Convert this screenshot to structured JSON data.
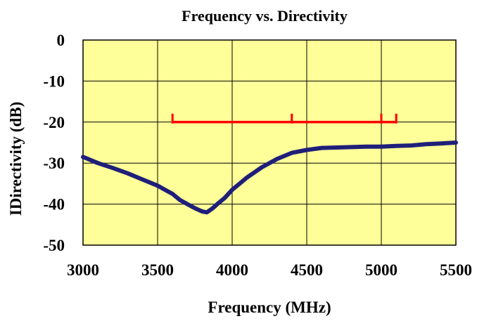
{
  "chart_data": {
    "type": "line",
    "title": "Frequency vs. Directivity",
    "xlabel": "Frequency (MHz)",
    "ylabel": "IDirectivity (dB)",
    "xlim": [
      3000,
      5500
    ],
    "ylim": [
      -50,
      0
    ],
    "xticks": [
      "3000",
      "3500",
      "4000",
      "4500",
      "5000",
      "5500"
    ],
    "yticks": [
      "0",
      "-10",
      "-20",
      "-30",
      "-40",
      "-50"
    ],
    "grid": true,
    "plot_background": "#FFFF99",
    "series": [
      {
        "color": "#1F1F7A",
        "x": [
          3000,
          3100,
          3200,
          3300,
          3400,
          3500,
          3550,
          3600,
          3650,
          3700,
          3750,
          3800,
          3830,
          3850,
          3870,
          3900,
          3950,
          4000,
          4050,
          4100,
          4200,
          4300,
          4400,
          4500,
          4600,
          4700,
          4800,
          4900,
          5000,
          5100,
          5200,
          5300,
          5400,
          5500
        ],
        "y": [
          -28.5,
          -30.0,
          -31.2,
          -32.5,
          -34.0,
          -35.5,
          -36.5,
          -37.5,
          -39.0,
          -40.0,
          -41.0,
          -41.8,
          -42.0,
          -41.5,
          -41.0,
          -40.0,
          -38.5,
          -36.5,
          -35.0,
          -33.5,
          -31.0,
          -29.0,
          -27.5,
          -26.8,
          -26.3,
          -26.2,
          -26.1,
          -26.0,
          -26.0,
          -25.8,
          -25.7,
          -25.4,
          -25.2,
          -25.0
        ]
      },
      {
        "color": "#FF0000",
        "x": [
          3600,
          5100
        ],
        "y": [
          -20,
          -20
        ],
        "markers_x": [
          3600,
          4400,
          5000,
          5100
        ]
      }
    ]
  }
}
